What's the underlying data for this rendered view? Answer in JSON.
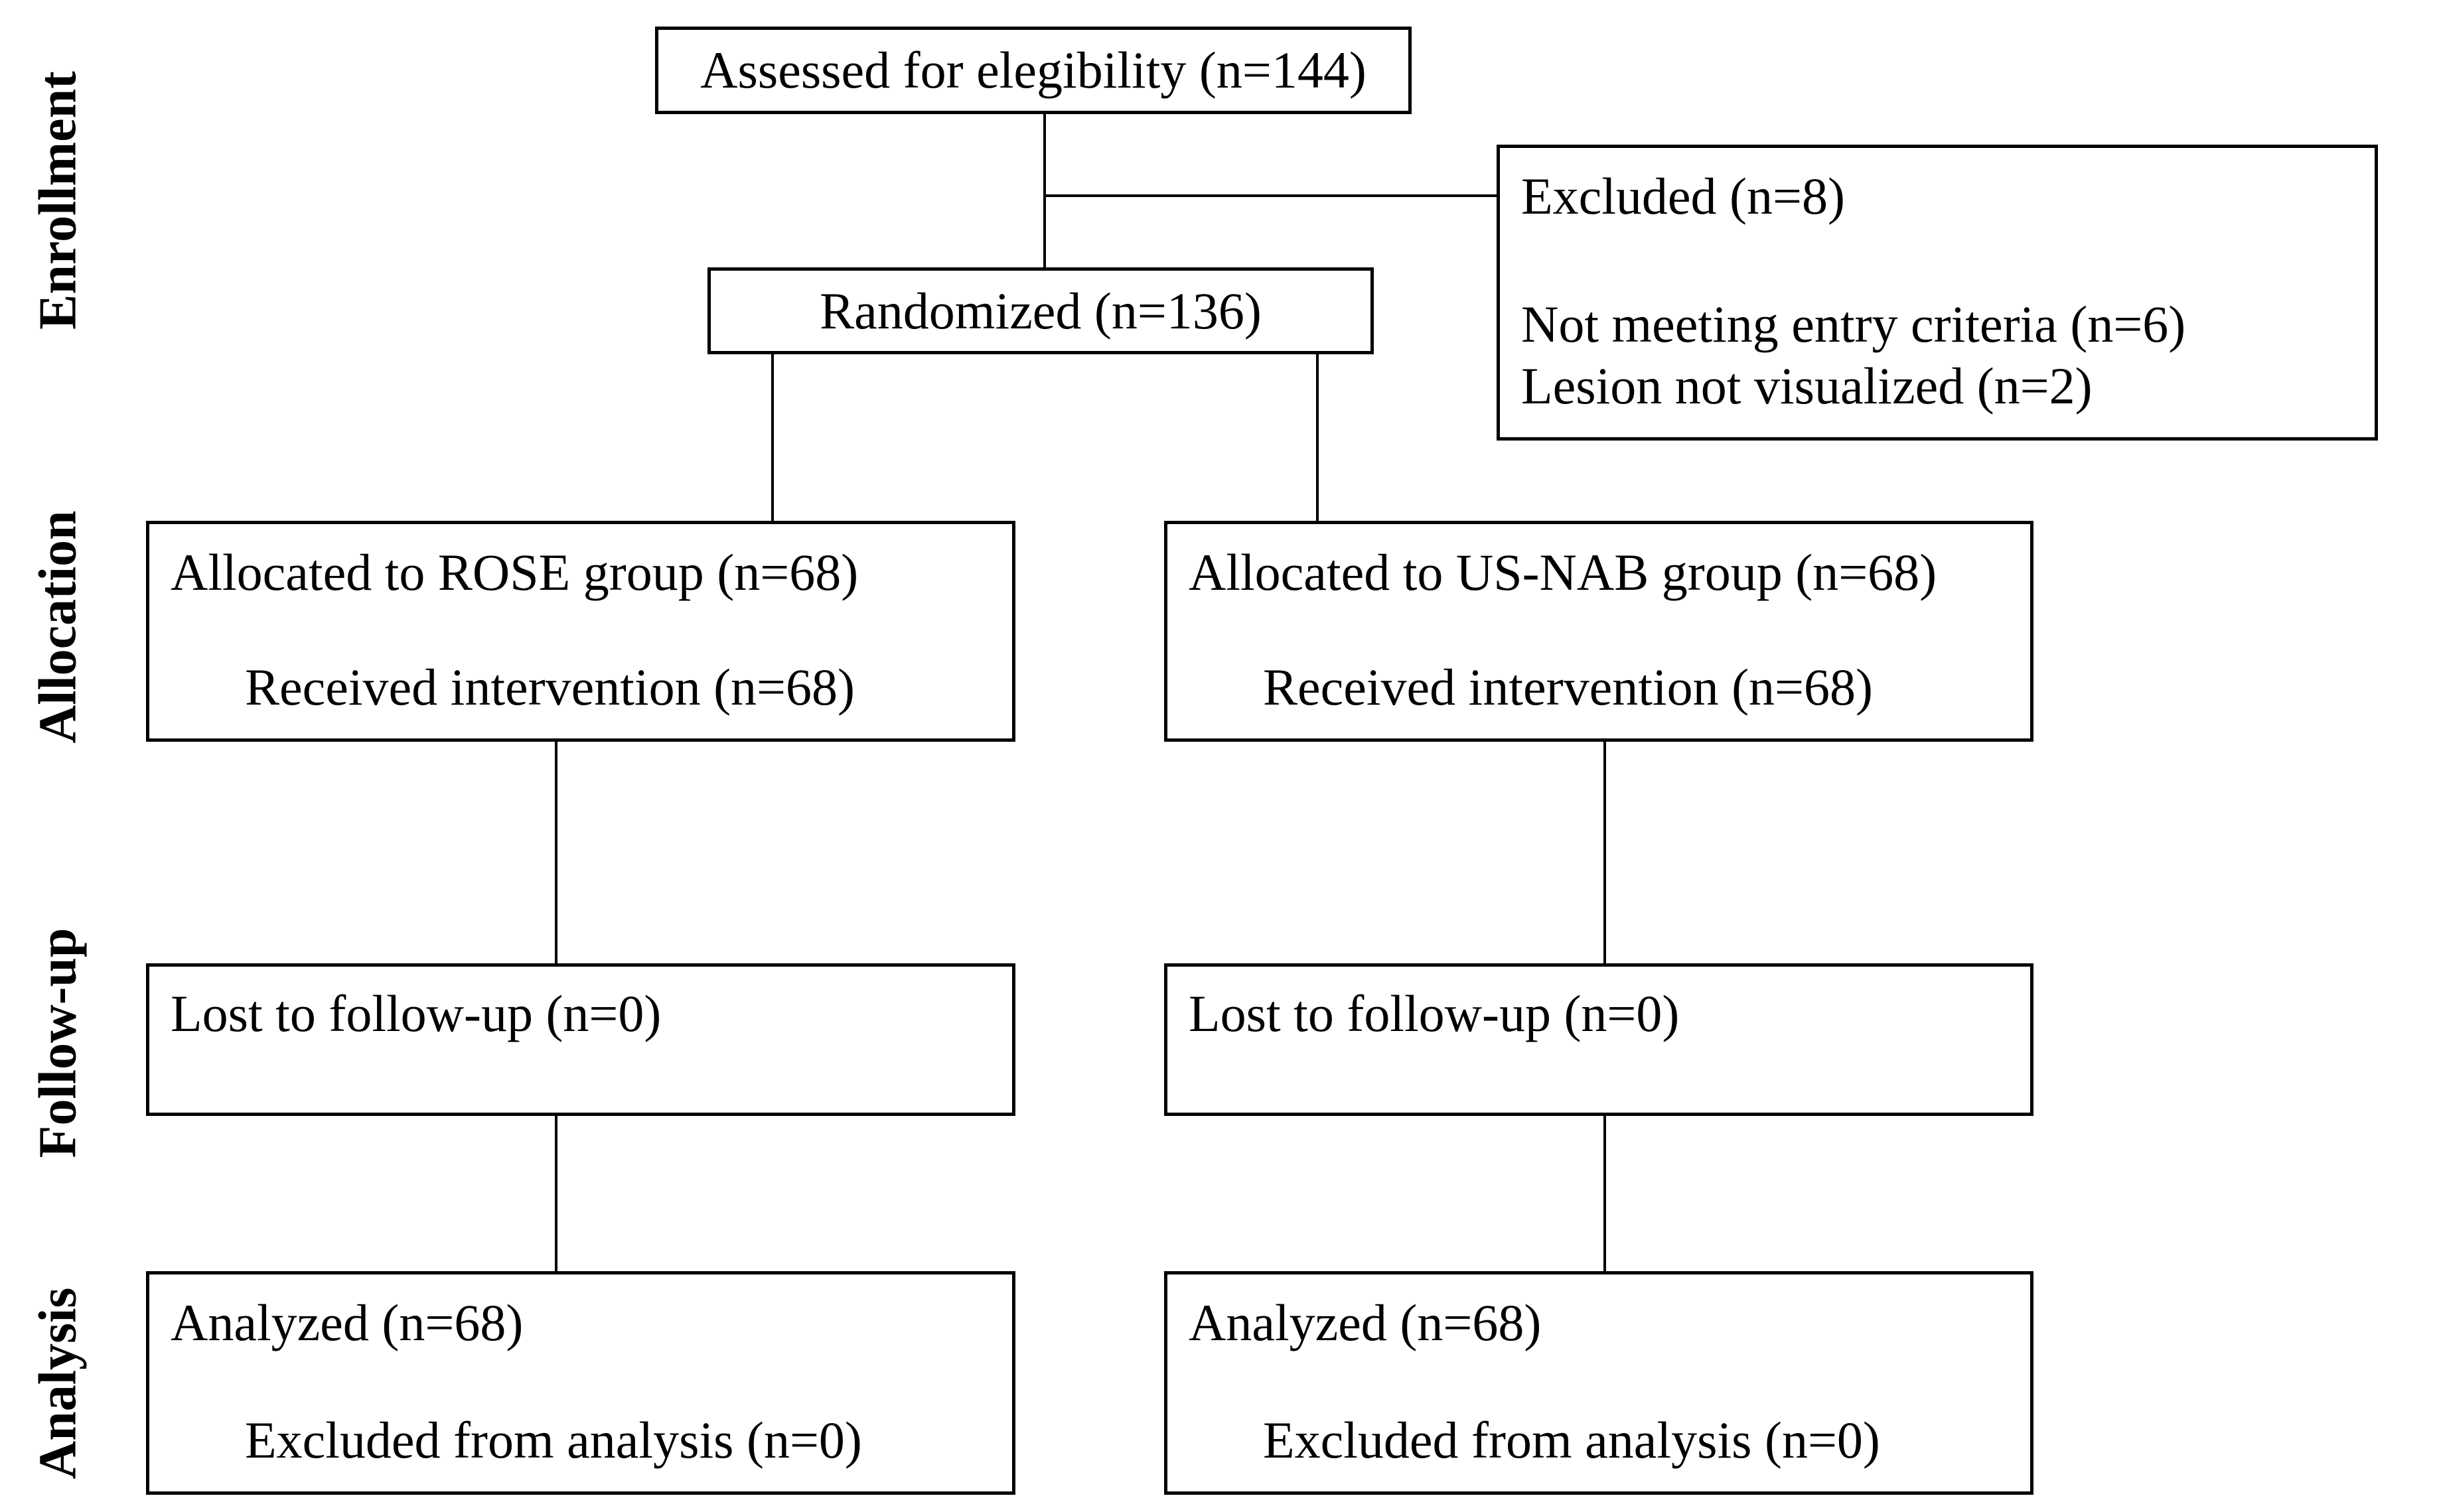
{
  "diagram": {
    "type": "consort-flow-diagram",
    "colors": {
      "background": "#ffffff",
      "border": "#000000",
      "text": "#000000"
    },
    "stages": {
      "enrollment": "Enrollment",
      "allocation": "Allocation",
      "follow_up": "Follow-up",
      "analysis": "Analysis"
    },
    "boxes": {
      "assessed": {
        "text": "Assessed for elegibility (n=144)"
      },
      "excluded": {
        "title": "Excluded (n=8)",
        "reasons": [
          "Not meeting entry criteria (n=6)",
          "Lesion not visualized (n=2)"
        ]
      },
      "randomized": {
        "text": "Randomized (n=136)"
      },
      "allocation_rose": {
        "line1": "Allocated to ROSE group (n=68)",
        "line2": "Received intervention (n=68)"
      },
      "allocation_usnab": {
        "line1": "Allocated to US-NAB group (n=68)",
        "line2": "Received intervention (n=68)"
      },
      "followup_rose": {
        "text": "Lost to follow-up (n=0)"
      },
      "followup_usnab": {
        "text": "Lost to follow-up (n=0)"
      },
      "analysis_rose": {
        "line1": "Analyzed (n=68)",
        "line2": "Excluded from analysis (n=0)"
      },
      "analysis_usnab": {
        "line1": "Analyzed (n=68)",
        "line2": "Excluded from analysis (n=0)"
      }
    }
  }
}
